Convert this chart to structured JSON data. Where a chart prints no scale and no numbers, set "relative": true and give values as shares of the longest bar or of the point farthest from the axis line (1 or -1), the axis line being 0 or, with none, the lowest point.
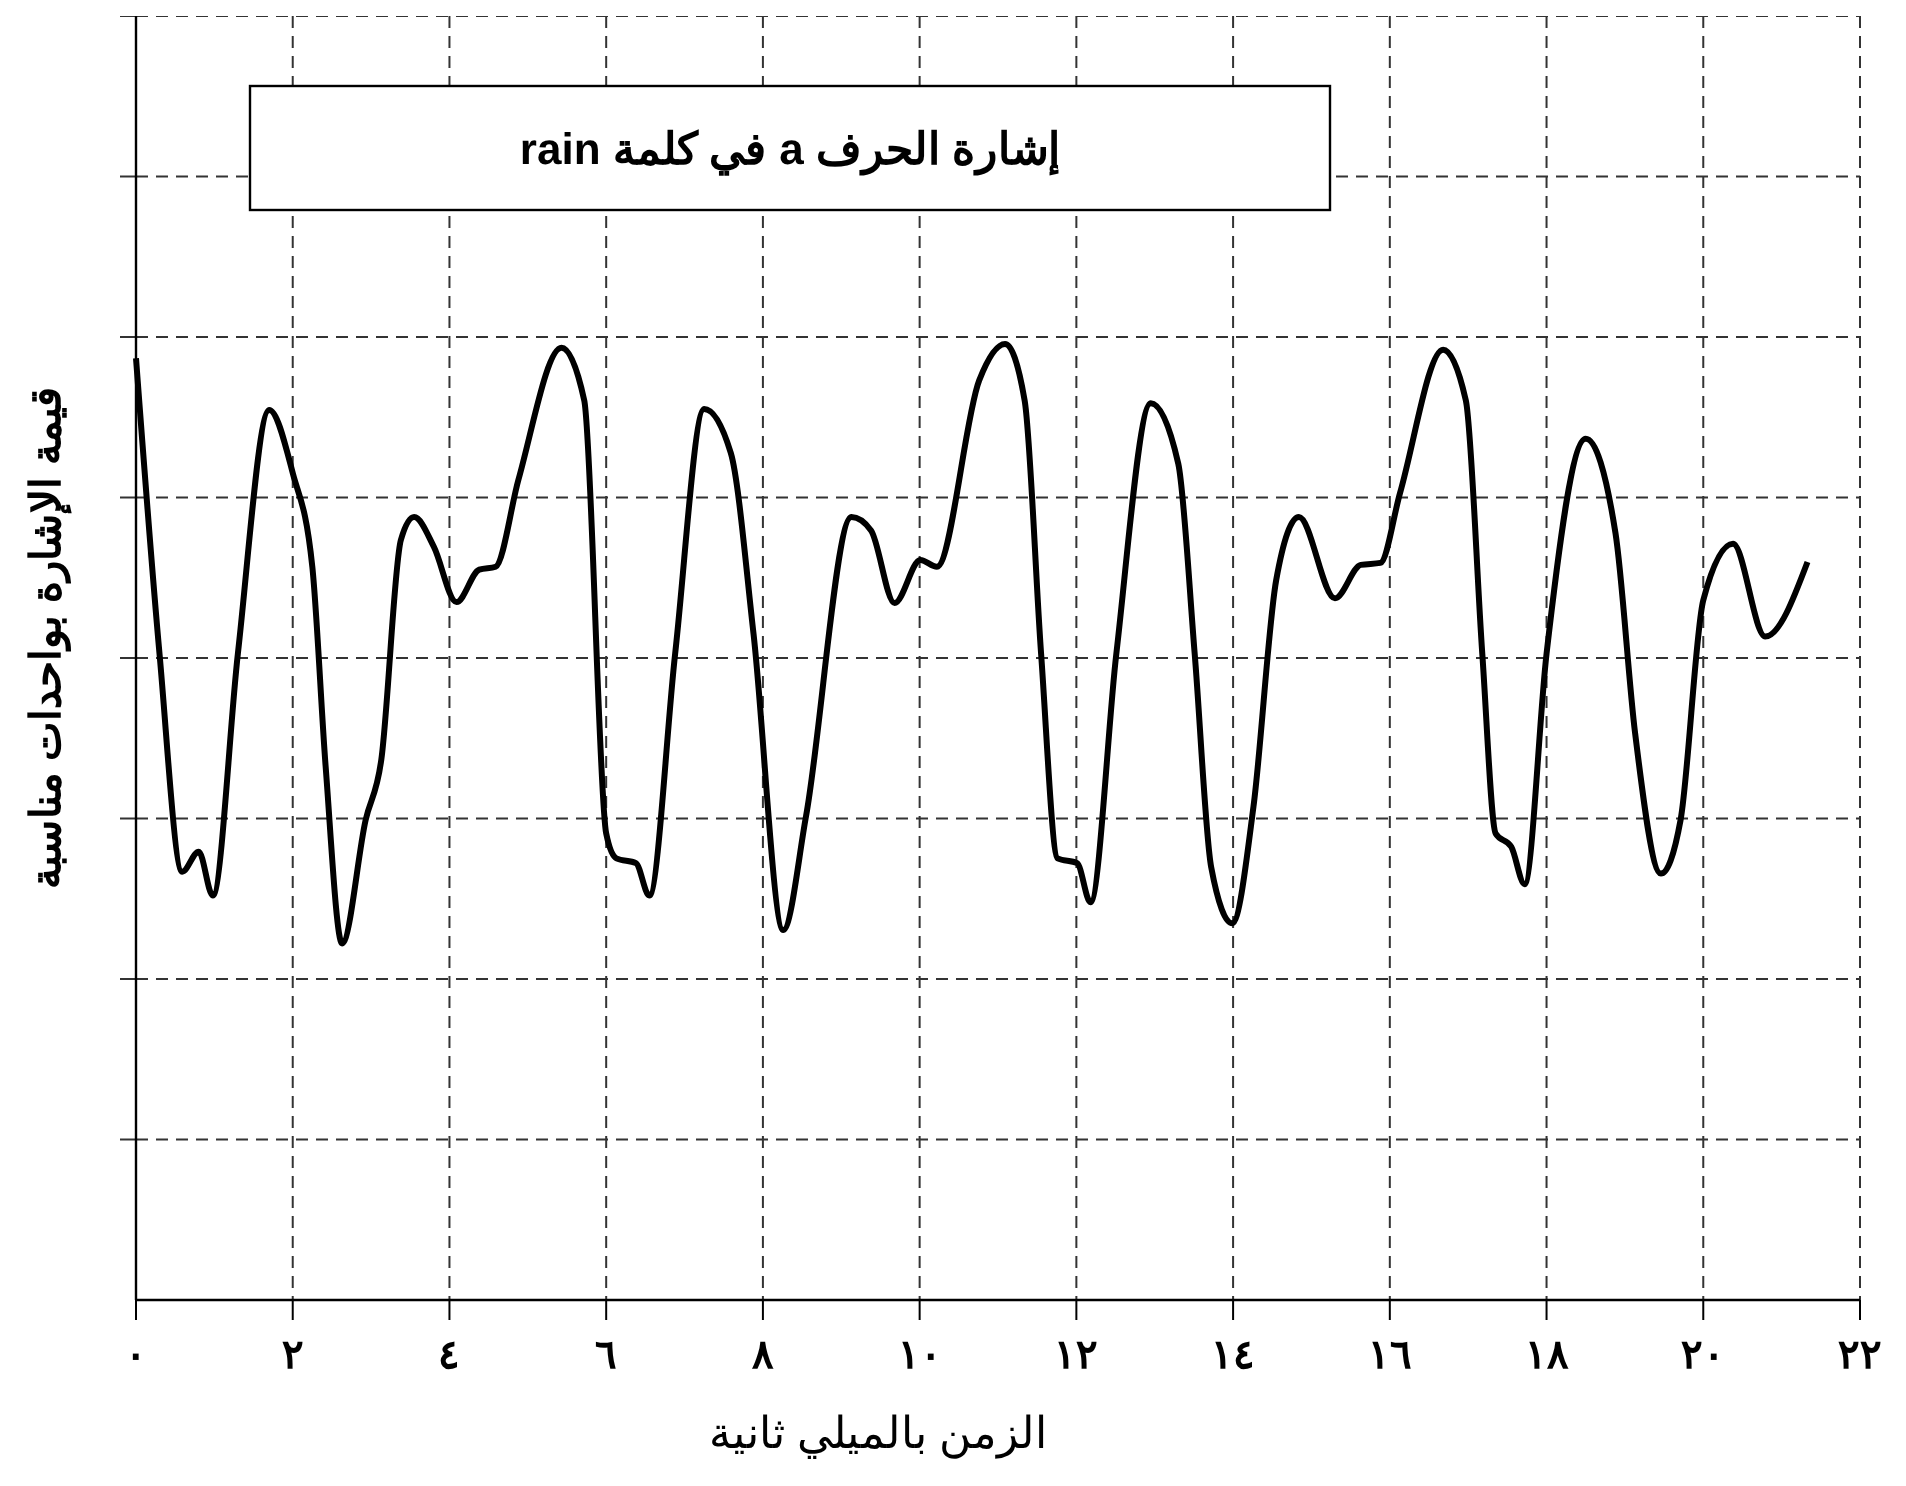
{
  "chart_data": {
    "type": "line",
    "title": "إشارة الحرف a في كلمة rain",
    "xlabel": "الزمن بالميلي ثانية",
    "ylabel": "قيمة الإشارة بواحدات مناسبة",
    "relative": true,
    "grid": true,
    "line_style": "solid",
    "marker": "none",
    "xlim": [
      0,
      22
    ],
    "xticks": [
      {
        "value": 0,
        "label": "٠"
      },
      {
        "value": 2,
        "label": "٢"
      },
      {
        "value": 4,
        "label": "٤"
      },
      {
        "value": 6,
        "label": "٦"
      },
      {
        "value": 8,
        "label": "٨"
      },
      {
        "value": 10,
        "label": "١٠"
      },
      {
        "value": 12,
        "label": "١٢"
      },
      {
        "value": 14,
        "label": "١٤"
      },
      {
        "value": 16,
        "label": "١٦"
      },
      {
        "value": 18,
        "label": "١٨"
      },
      {
        "value": 20,
        "label": "٢٠"
      },
      {
        "value": 22,
        "label": "٢٢"
      }
    ],
    "x": [
      0,
      0.3,
      0.59,
      0.8,
      0.98,
      1.3,
      1.7,
      2.0,
      2.25,
      2.42,
      2.63,
      2.93,
      3.13,
      3.38,
      3.55,
      3.8,
      4.09,
      4.38,
      4.59,
      4.88,
      5.43,
      5.72,
      6.0,
      6.13,
      6.38,
      6.55,
      6.88,
      7.25,
      7.59,
      7.88,
      8.26,
      8.55,
      9.13,
      9.38,
      9.68,
      10.01,
      10.22,
      10.76,
      11.09,
      11.34,
      11.55,
      11.76,
      12.01,
      12.18,
      12.51,
      12.95,
      13.3,
      13.51,
      13.72,
      13.99,
      14.26,
      14.55,
      14.84,
      15.3,
      15.63,
      15.88,
      16.13,
      16.68,
      16.97,
      17.18,
      17.35,
      17.55,
      17.72,
      18.0,
      18.5,
      18.88,
      19.13,
      19.46,
      19.71,
      20.0,
      20.38,
      20.79,
      21.33
    ],
    "series": [
      {
        "color": "#000000",
        "values": [
          0.985,
          0.676,
          0.448,
          0.469,
          0.423,
          0.676,
          0.931,
          0.865,
          0.767,
          0.558,
          0.373,
          0.502,
          0.565,
          0.795,
          0.819,
          0.788,
          0.73,
          0.764,
          0.767,
          0.858,
          0.996,
          0.941,
          0.488,
          0.462,
          0.457,
          0.423,
          0.676,
          0.932,
          0.886,
          0.697,
          0.387,
          0.506,
          0.819,
          0.805,
          0.729,
          0.774,
          0.767,
          0.962,
          1,
          0.941,
          0.676,
          0.462,
          0.457,
          0.416,
          0.676,
          0.938,
          0.875,
          0.676,
          0.453,
          0.394,
          0.516,
          0.753,
          0.819,
          0.734,
          0.769,
          0.771,
          0.844,
          0.994,
          0.941,
          0.676,
          0.488,
          0.474,
          0.435,
          0.676,
          0.901,
          0.802,
          0.593,
          0.446,
          0.502,
          0.732,
          0.791,
          0.694,
          0.772
        ]
      }
    ]
  }
}
